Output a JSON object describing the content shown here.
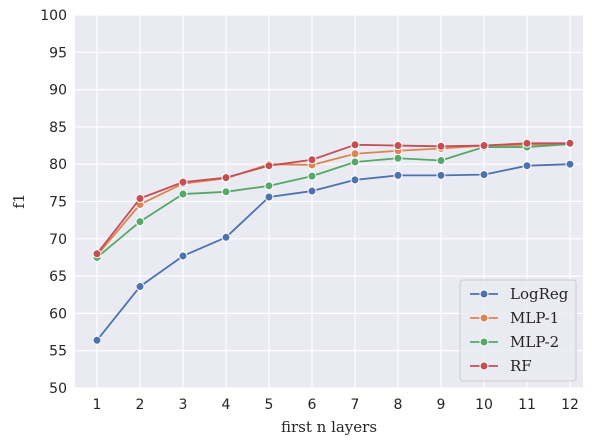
{
  "chart_data": {
    "type": "line",
    "title": "",
    "xlabel": "first n layers",
    "ylabel": "f1",
    "x": [
      1,
      2,
      3,
      4,
      5,
      6,
      7,
      8,
      9,
      10,
      11,
      12
    ],
    "x_ticks": [
      "1",
      "2",
      "3",
      "4",
      "5",
      "6",
      "7",
      "8",
      "9",
      "10",
      "11",
      "12"
    ],
    "ylim": [
      50,
      100
    ],
    "y_ticks": [
      "50",
      "55",
      "60",
      "65",
      "70",
      "75",
      "80",
      "85",
      "90",
      "95",
      "100"
    ],
    "grid": true,
    "legend_position": "bottom-right",
    "series": [
      {
        "name": "LogReg",
        "color": "#4c72b0",
        "values": [
          56.4,
          63.6,
          67.7,
          70.2,
          75.6,
          76.4,
          77.9,
          78.5,
          78.5,
          78.6,
          79.8,
          80.0
        ]
      },
      {
        "name": "MLP-1",
        "color": "#dd8452",
        "values": [
          67.8,
          74.6,
          77.4,
          78.1,
          80.0,
          79.9,
          81.4,
          81.8,
          82.1,
          82.5,
          82.6,
          82.8
        ]
      },
      {
        "name": "MLP-2",
        "color": "#55a868",
        "values": [
          67.5,
          72.3,
          76.0,
          76.3,
          77.1,
          78.4,
          80.3,
          80.8,
          80.5,
          82.3,
          82.3,
          82.7
        ]
      },
      {
        "name": "RF",
        "color": "#c44e52",
        "values": [
          68.0,
          75.4,
          77.6,
          78.2,
          79.8,
          80.6,
          82.6,
          82.5,
          82.4,
          82.5,
          82.8,
          82.8
        ]
      }
    ]
  }
}
